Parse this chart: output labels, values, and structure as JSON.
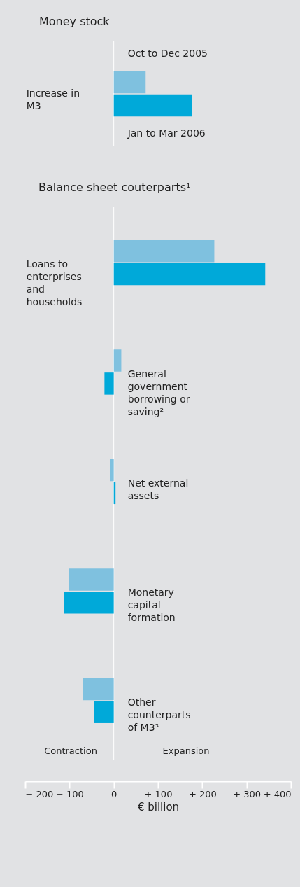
{
  "chart_data": [
    {
      "type": "bar",
      "orientation": "horizontal",
      "title": "Money stock",
      "categories": [
        "Increase in M3"
      ],
      "series": [
        {
          "name": "Oct to Dec 2005",
          "color": "#7fc1df",
          "values": [
            72
          ]
        },
        {
          "name": "Jan to Mar 2006",
          "color": "#00a9d9",
          "values": [
            176
          ]
        }
      ],
      "xlim": [
        -200,
        400
      ],
      "tick_labels": false
    },
    {
      "type": "bar",
      "orientation": "horizontal",
      "title": "Balance sheet couterparts¹",
      "categories": [
        "Loans to enterprises and households",
        "General government borrowing or saving²",
        "Net external assets",
        "Monetary capital formation",
        "Other counterparts of M3³"
      ],
      "series": [
        {
          "color": "#7fc1df",
          "values": [
            227,
            17,
            -8,
            -101,
            -70
          ]
        },
        {
          "color": "#00a9d9",
          "values": [
            342,
            -21,
            4,
            -112,
            -44
          ]
        }
      ],
      "xlim": [
        -200,
        400
      ],
      "xticks": [
        {
          "value": -200,
          "label": "− 200"
        },
        {
          "value": -100,
          "label": "− 100"
        },
        0,
        {
          "value": 100,
          "label": "+ 100"
        },
        {
          "value": 200,
          "label": "+ 200"
        },
        {
          "value": 300,
          "label": "+ 300"
        },
        {
          "value": 400,
          "label": "+ 400"
        }
      ],
      "xlabel": "€ billion",
      "annotations": [
        "Contraction",
        "Expansion"
      ]
    }
  ]
}
